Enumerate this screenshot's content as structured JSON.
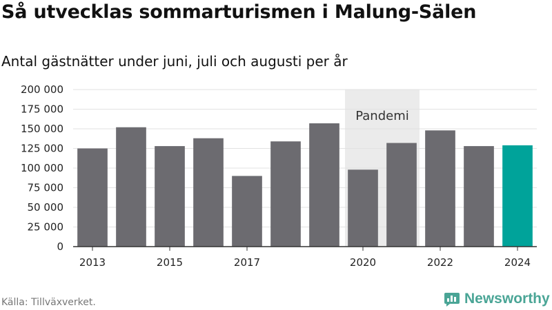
{
  "title": "Så utvecklas sommarturismen i Malung-Sälen",
  "subtitle": "Antal gästnätter under juni, juli och augusti per år",
  "source": "Källa: Tillväxverket.",
  "brand": {
    "name": "Newsworthy",
    "icon": "bar-chart-logo-icon",
    "color": "#4aa596"
  },
  "colors": {
    "bar": "#6c6b70",
    "highlight": "#00a39a",
    "shade": "#ebebeb",
    "axis": "#333333"
  },
  "chart_data": {
    "type": "bar",
    "title": "Så utvecklas sommarturismen i Malung-Sälen",
    "subtitle": "Antal gästnätter under juni, juli och augusti per år",
    "categories": [
      "2013",
      "2014",
      "2015",
      "2016",
      "2017",
      "2018",
      "2019",
      "2020",
      "2021",
      "2022",
      "2023",
      "2024"
    ],
    "values": [
      125000,
      152000,
      128000,
      138000,
      90000,
      134000,
      157000,
      98000,
      132000,
      148000,
      128000,
      129000
    ],
    "highlight_category": "2024",
    "x_tick_labels": [
      "2013",
      "2015",
      "2017",
      "2020",
      "2022",
      "2024"
    ],
    "y_ticks": [
      0,
      25000,
      50000,
      75000,
      100000,
      125000,
      150000,
      175000,
      200000
    ],
    "y_tick_labels": [
      "0",
      "25 000",
      "50 000",
      "75 000",
      "100 000",
      "125 000",
      "150 000",
      "175 000",
      "200 000"
    ],
    "ylim": [
      0,
      200000
    ],
    "xlabel": "",
    "ylabel": "",
    "grid": true,
    "legend": "none",
    "annotations": [
      {
        "label": "Pandemi",
        "from": "2020",
        "to": "2021"
      }
    ]
  }
}
